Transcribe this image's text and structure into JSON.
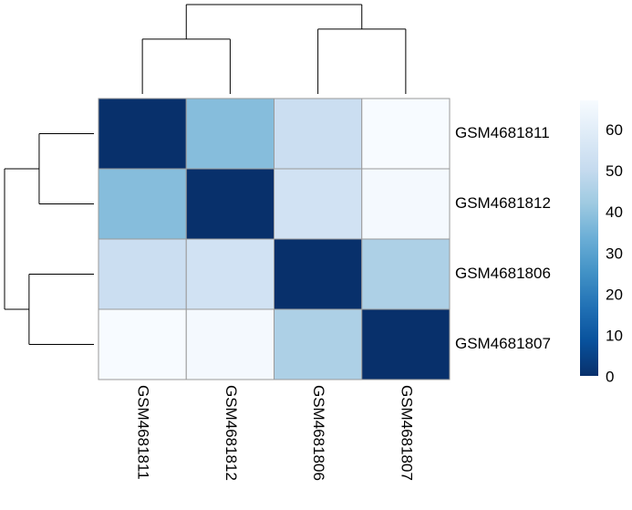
{
  "chart_data": {
    "type": "heatmap",
    "row_labels": [
      "GSM4681811",
      "GSM4681812",
      "GSM4681806",
      "GSM4681807"
    ],
    "column_labels": [
      "GSM4681811",
      "GSM4681812",
      "GSM4681806",
      "GSM4681807"
    ],
    "values": [
      [
        0,
        38,
        52,
        67
      ],
      [
        38,
        0,
        54,
        66
      ],
      [
        52,
        54,
        0,
        45
      ],
      [
        67,
        66,
        45,
        0
      ]
    ],
    "colors": [
      "#08306b",
      "#08519c",
      "#2171b5",
      "#4292c6",
      "#6baed6",
      "#9ecae1",
      "#c6dbef",
      "#deebf7",
      "#f7fbff"
    ],
    "zlim": [
      0,
      67
    ],
    "zticks": [
      0,
      10,
      20,
      30,
      40,
      50,
      60
    ],
    "merge_heights": [
      38,
      45,
      62
    ]
  }
}
